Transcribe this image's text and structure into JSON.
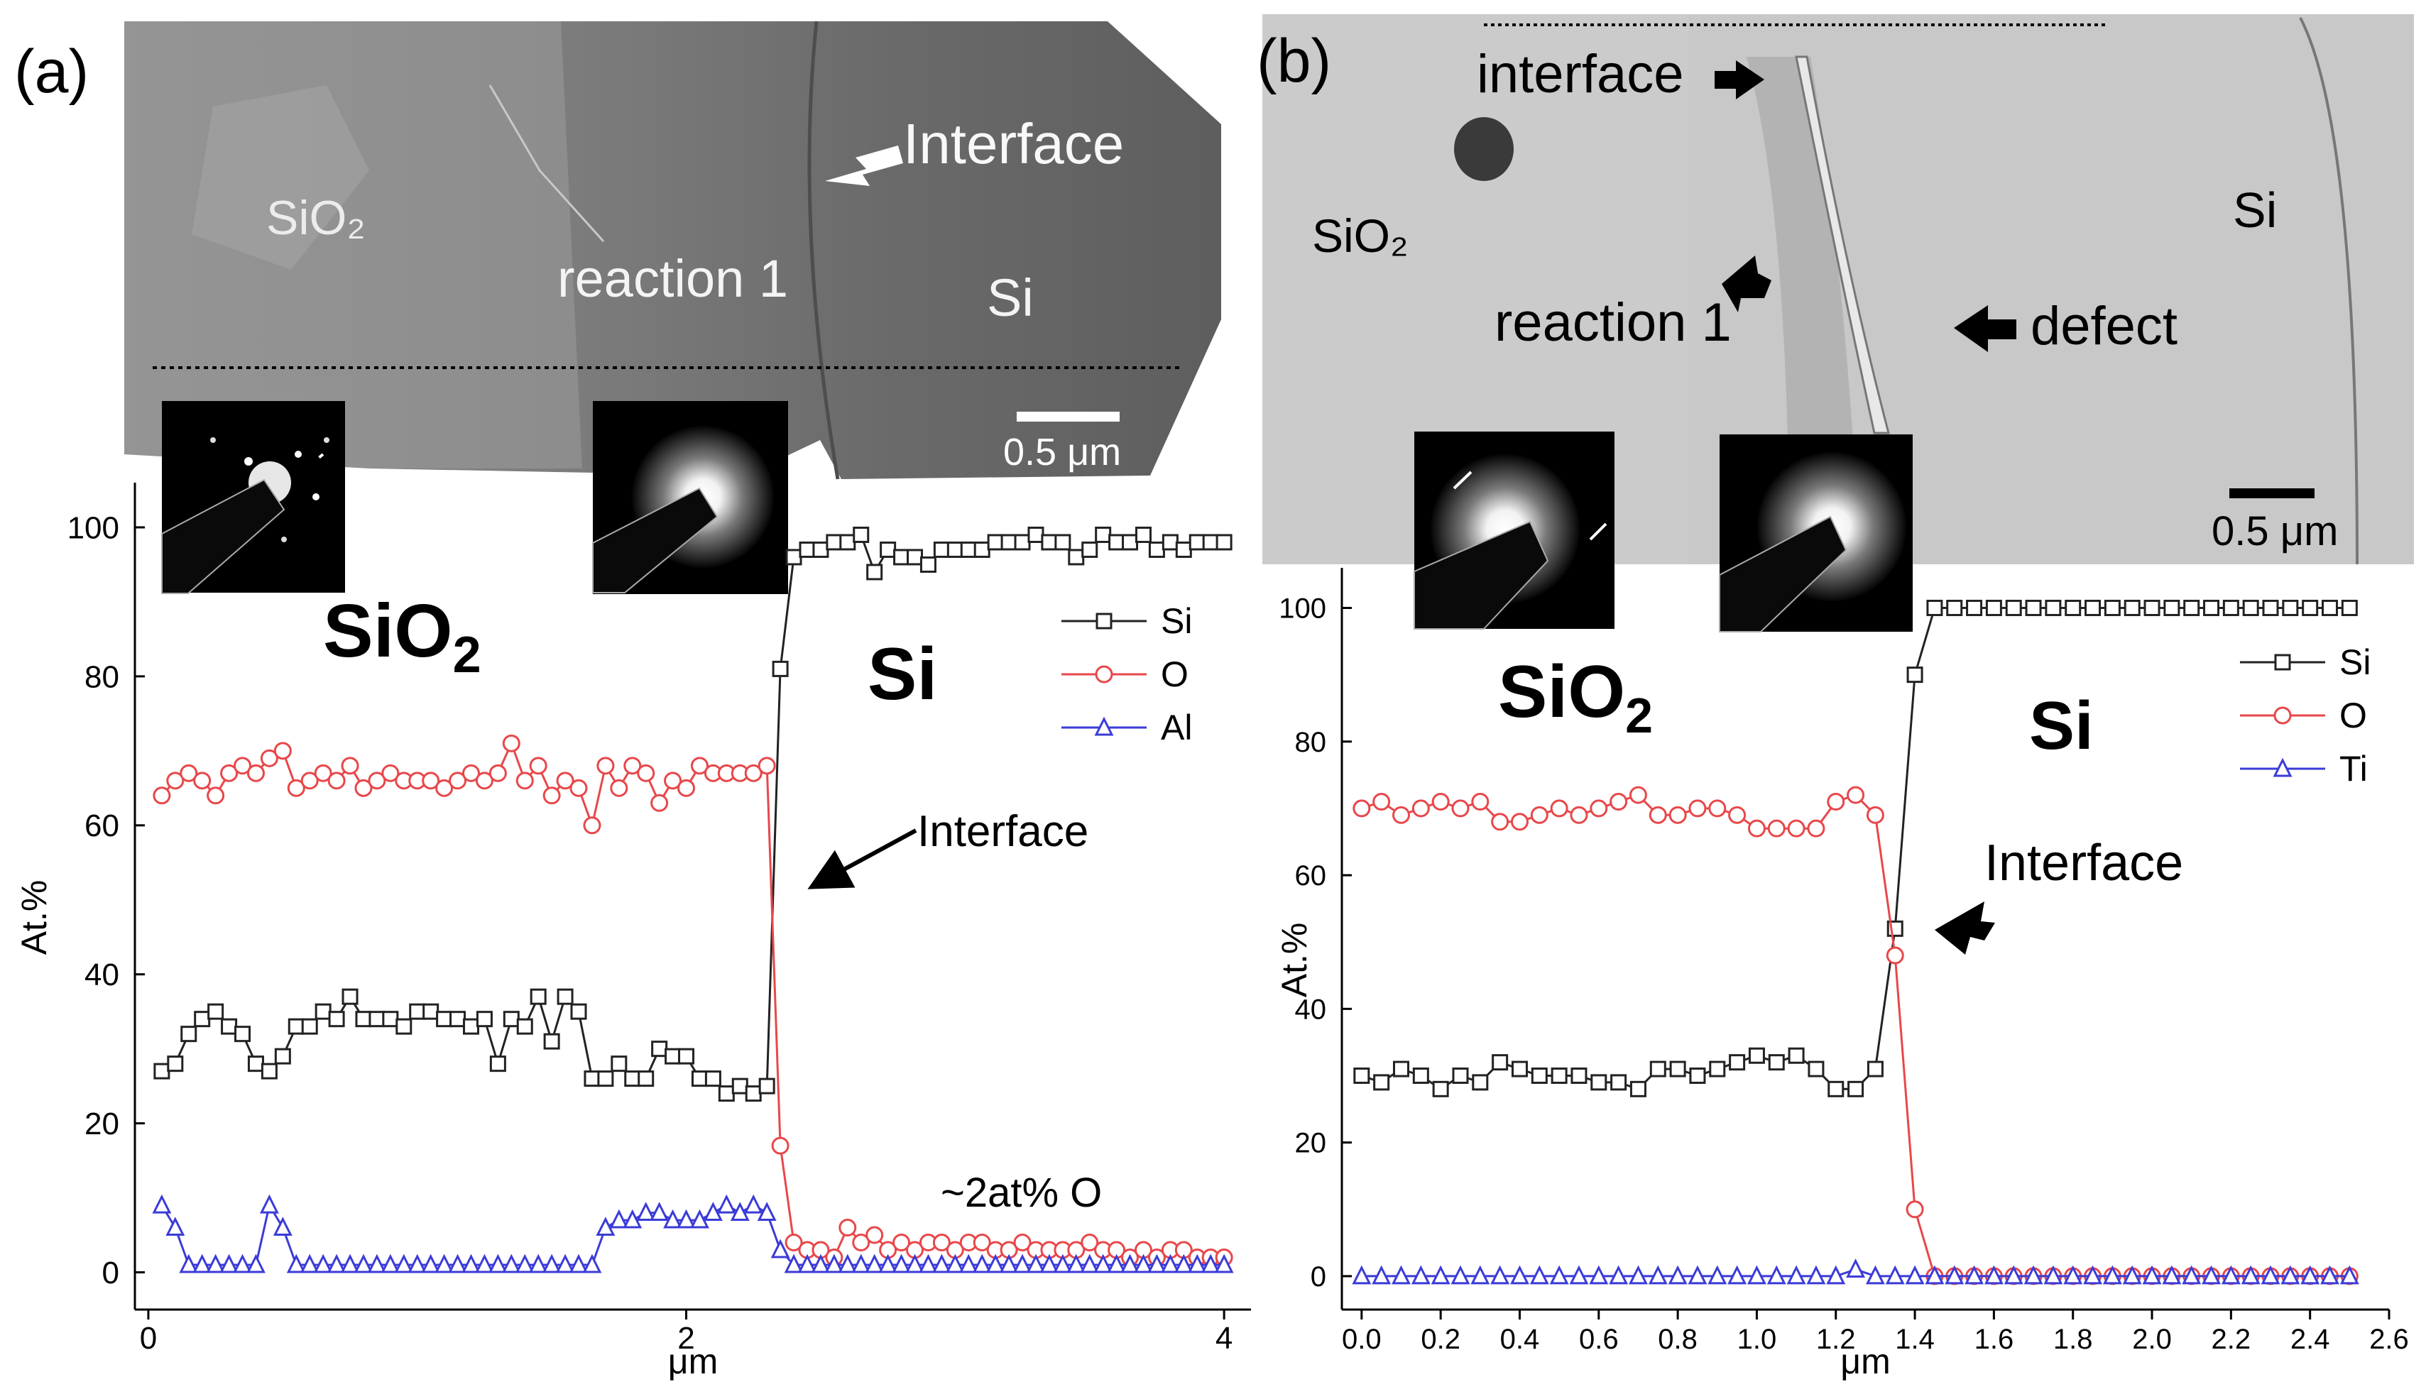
{
  "panels": {
    "a": {
      "label": "(a)",
      "micrograph": {
        "region_sio2": "SiO₂",
        "region_reaction": "reaction 1",
        "region_si": "Si",
        "interface_label": "Interface",
        "scale_bar": "0.5 μm"
      },
      "annotations": {
        "sio2": "SiO",
        "sio2_sub": "2",
        "si": "Si",
        "interface": "Interface",
        "oxygen_note": "~2at% O"
      }
    },
    "b": {
      "label": "(b)",
      "micrograph": {
        "interface_label": "interface",
        "region_sio2": "SiO₂",
        "region_reaction": "reaction 1",
        "region_si": "Si",
        "defect_label": "defect",
        "scale_bar": "0.5 μm"
      },
      "annotations": {
        "sio2": "SiO",
        "sio2_sub": "2",
        "si": "Si",
        "interface": "Interface"
      }
    }
  },
  "colors": {
    "si": "#222222",
    "o": "#e8474a",
    "al": "#3b3bd8",
    "ti": "#3b3bd8"
  },
  "chart_data": [
    {
      "type": "line",
      "panel": "a",
      "xlabel": "μm",
      "ylabel": "At.%",
      "xlim": [
        -0.05,
        4.1
      ],
      "ylim": [
        -5,
        106
      ],
      "xticks": [
        0,
        2,
        4
      ],
      "yticks": [
        0,
        20,
        40,
        60,
        80,
        100
      ],
      "legend": {
        "position": "top-right",
        "entries": [
          "Si",
          "O",
          "Al"
        ]
      },
      "series": [
        {
          "name": "Si",
          "marker": "square",
          "color": "#222222",
          "x": [
            0.05,
            0.1,
            0.15,
            0.2,
            0.25,
            0.3,
            0.35,
            0.4,
            0.45,
            0.5,
            0.55,
            0.6,
            0.65,
            0.7,
            0.75,
            0.8,
            0.85,
            0.9,
            0.95,
            1.0,
            1.05,
            1.1,
            1.15,
            1.2,
            1.25,
            1.3,
            1.35,
            1.4,
            1.45,
            1.5,
            1.55,
            1.6,
            1.65,
            1.7,
            1.75,
            1.8,
            1.85,
            1.9,
            1.95,
            2.0,
            2.05,
            2.1,
            2.15,
            2.2,
            2.25,
            2.3,
            2.35,
            2.4,
            2.45,
            2.5,
            2.55,
            2.6,
            2.65,
            2.7,
            2.75,
            2.8,
            2.85,
            2.9,
            2.95,
            3.0,
            3.05,
            3.1,
            3.15,
            3.2,
            3.25,
            3.3,
            3.35,
            3.4,
            3.45,
            3.5,
            3.55,
            3.6,
            3.65,
            3.7,
            3.75,
            3.8,
            3.85,
            3.9,
            3.95,
            4.0
          ],
          "values": [
            27,
            28,
            32,
            34,
            35,
            33,
            32,
            28,
            27,
            29,
            33,
            33,
            35,
            34,
            37,
            34,
            34,
            34,
            33,
            35,
            35,
            34,
            34,
            33,
            34,
            28,
            34,
            33,
            37,
            31,
            37,
            35,
            26,
            26,
            28,
            26,
            26,
            30,
            29,
            29,
            26,
            26,
            24,
            25,
            24,
            25,
            81,
            96,
            97,
            97,
            98,
            98,
            99,
            94,
            97,
            96,
            96,
            95,
            97,
            97,
            97,
            97,
            98,
            98,
            98,
            99,
            98,
            98,
            96,
            97,
            99,
            98,
            98,
            99,
            97,
            98,
            97,
            98,
            98,
            98
          ]
        },
        {
          "name": "O",
          "marker": "circle",
          "color": "#e8474a",
          "x": [
            0.05,
            0.1,
            0.15,
            0.2,
            0.25,
            0.3,
            0.35,
            0.4,
            0.45,
            0.5,
            0.55,
            0.6,
            0.65,
            0.7,
            0.75,
            0.8,
            0.85,
            0.9,
            0.95,
            1.0,
            1.05,
            1.1,
            1.15,
            1.2,
            1.25,
            1.3,
            1.35,
            1.4,
            1.45,
            1.5,
            1.55,
            1.6,
            1.65,
            1.7,
            1.75,
            1.8,
            1.85,
            1.9,
            1.95,
            2.0,
            2.05,
            2.1,
            2.15,
            2.2,
            2.25,
            2.3,
            2.35,
            2.4,
            2.45,
            2.5,
            2.55,
            2.6,
            2.65,
            2.7,
            2.75,
            2.8,
            2.85,
            2.9,
            2.95,
            3.0,
            3.05,
            3.1,
            3.15,
            3.2,
            3.25,
            3.3,
            3.35,
            3.4,
            3.45,
            3.5,
            3.55,
            3.6,
            3.65,
            3.7,
            3.75,
            3.8,
            3.85,
            3.9,
            3.95,
            4.0
          ],
          "values": [
            64,
            66,
            67,
            66,
            64,
            67,
            68,
            67,
            69,
            70,
            65,
            66,
            67,
            66,
            68,
            65,
            66,
            67,
            66,
            66,
            66,
            65,
            66,
            67,
            66,
            67,
            71,
            66,
            68,
            64,
            66,
            65,
            60,
            68,
            65,
            68,
            67,
            63,
            66,
            65,
            68,
            67,
            67,
            67,
            67,
            68,
            17,
            4,
            3,
            3,
            2,
            6,
            4,
            5,
            3,
            4,
            3,
            4,
            4,
            3,
            4,
            4,
            3,
            3,
            4,
            3,
            3,
            3,
            3,
            4,
            3,
            3,
            2,
            3,
            2,
            3,
            3,
            2,
            2,
            2
          ]
        },
        {
          "name": "Al",
          "marker": "triangle",
          "color": "#3b3bd8",
          "x": [
            0.05,
            0.1,
            0.15,
            0.2,
            0.25,
            0.3,
            0.35,
            0.4,
            0.45,
            0.5,
            0.55,
            0.6,
            0.65,
            0.7,
            0.75,
            0.8,
            0.85,
            0.9,
            0.95,
            1.0,
            1.05,
            1.1,
            1.15,
            1.2,
            1.25,
            1.3,
            1.35,
            1.4,
            1.45,
            1.5,
            1.55,
            1.6,
            1.65,
            1.7,
            1.75,
            1.8,
            1.85,
            1.9,
            1.95,
            2.0,
            2.05,
            2.1,
            2.15,
            2.2,
            2.25,
            2.3,
            2.35,
            2.4,
            2.45,
            2.5,
            2.55,
            2.6,
            2.65,
            2.7,
            2.75,
            2.8,
            2.85,
            2.9,
            2.95,
            3.0,
            3.05,
            3.1,
            3.15,
            3.2,
            3.25,
            3.3,
            3.35,
            3.4,
            3.45,
            3.5,
            3.55,
            3.6,
            3.65,
            3.7,
            3.75,
            3.8,
            3.85,
            3.9,
            3.95,
            4.0
          ],
          "values": [
            9,
            6,
            1,
            1,
            1,
            1,
            1,
            1,
            9,
            6,
            1,
            1,
            1,
            1,
            1,
            1,
            1,
            1,
            1,
            1,
            1,
            1,
            1,
            1,
            1,
            1,
            1,
            1,
            1,
            1,
            1,
            1,
            1,
            6,
            7,
            7,
            8,
            8,
            7,
            7,
            7,
            8,
            9,
            8,
            9,
            8,
            3,
            1,
            1,
            1,
            1,
            1,
            1,
            1,
            1,
            1,
            1,
            1,
            1,
            1,
            1,
            1,
            1,
            1,
            1,
            1,
            1,
            1,
            1,
            1,
            1,
            1,
            1,
            1,
            1,
            1,
            1,
            1,
            1,
            1
          ]
        }
      ]
    },
    {
      "type": "line",
      "panel": "b",
      "xlabel": "μm",
      "ylabel": "At.%",
      "xlim": [
        -0.05,
        2.6
      ],
      "ylim": [
        -5,
        106
      ],
      "xticks": [
        0.0,
        0.2,
        0.4,
        0.6,
        0.8,
        1.0,
        1.2,
        1.4,
        1.6,
        1.8,
        2.0,
        2.2,
        2.4,
        2.6
      ],
      "xtick_labels": [
        "0.0",
        "0.2",
        "0.4",
        "0.6",
        "0.8",
        "1.0",
        "1.2",
        "1.4",
        "1.6",
        "1.8",
        "2.0",
        "2.2",
        "2.4",
        "2.6"
      ],
      "yticks": [
        0,
        20,
        40,
        60,
        80,
        100
      ],
      "legend": {
        "position": "top-right",
        "entries": [
          "Si",
          "O",
          "Ti"
        ]
      },
      "series": [
        {
          "name": "Si",
          "marker": "square",
          "color": "#222222",
          "x": [
            0.0,
            0.05,
            0.1,
            0.15,
            0.2,
            0.25,
            0.3,
            0.35,
            0.4,
            0.45,
            0.5,
            0.55,
            0.6,
            0.65,
            0.7,
            0.75,
            0.8,
            0.85,
            0.9,
            0.95,
            1.0,
            1.05,
            1.1,
            1.15,
            1.2,
            1.25,
            1.3,
            1.35,
            1.4,
            1.45,
            1.5,
            1.55,
            1.6,
            1.65,
            1.7,
            1.75,
            1.8,
            1.85,
            1.9,
            1.95,
            2.0,
            2.05,
            2.1,
            2.15,
            2.2,
            2.25,
            2.3,
            2.35,
            2.4,
            2.45,
            2.5
          ],
          "values": [
            30,
            29,
            31,
            30,
            28,
            30,
            29,
            32,
            31,
            30,
            30,
            30,
            29,
            29,
            28,
            31,
            31,
            30,
            31,
            32,
            33,
            32,
            33,
            31,
            28,
            28,
            31,
            52,
            90,
            100,
            100,
            100,
            100,
            100,
            100,
            100,
            100,
            100,
            100,
            100,
            100,
            100,
            100,
            100,
            100,
            100,
            100,
            100,
            100,
            100,
            100
          ]
        },
        {
          "name": "O",
          "marker": "circle",
          "color": "#e8474a",
          "x": [
            0.0,
            0.05,
            0.1,
            0.15,
            0.2,
            0.25,
            0.3,
            0.35,
            0.4,
            0.45,
            0.5,
            0.55,
            0.6,
            0.65,
            0.7,
            0.75,
            0.8,
            0.85,
            0.9,
            0.95,
            1.0,
            1.05,
            1.1,
            1.15,
            1.2,
            1.25,
            1.3,
            1.35,
            1.4,
            1.45,
            1.5,
            1.55,
            1.6,
            1.65,
            1.7,
            1.75,
            1.8,
            1.85,
            1.9,
            1.95,
            2.0,
            2.05,
            2.1,
            2.15,
            2.2,
            2.25,
            2.3,
            2.35,
            2.4,
            2.45,
            2.5
          ],
          "values": [
            70,
            71,
            69,
            70,
            71,
            70,
            71,
            68,
            68,
            69,
            70,
            69,
            70,
            71,
            72,
            69,
            69,
            70,
            70,
            69,
            67,
            67,
            67,
            67,
            71,
            72,
            69,
            48,
            10,
            0,
            0,
            0,
            0,
            0,
            0,
            0,
            0,
            0,
            0,
            0,
            0,
            0,
            0,
            0,
            0,
            0,
            0,
            0,
            0,
            0,
            0
          ]
        },
        {
          "name": "Ti",
          "marker": "triangle",
          "color": "#3b3bd8",
          "x": [
            0.0,
            0.05,
            0.1,
            0.15,
            0.2,
            0.25,
            0.3,
            0.35,
            0.4,
            0.45,
            0.5,
            0.55,
            0.6,
            0.65,
            0.7,
            0.75,
            0.8,
            0.85,
            0.9,
            0.95,
            1.0,
            1.05,
            1.1,
            1.15,
            1.2,
            1.25,
            1.3,
            1.35,
            1.4,
            1.45,
            1.5,
            1.55,
            1.6,
            1.65,
            1.7,
            1.75,
            1.8,
            1.85,
            1.9,
            1.95,
            2.0,
            2.05,
            2.1,
            2.15,
            2.2,
            2.25,
            2.3,
            2.35,
            2.4,
            2.45,
            2.5
          ],
          "values": [
            0,
            0,
            0,
            0,
            0,
            0,
            0,
            0,
            0,
            0,
            0,
            0,
            0,
            0,
            0,
            0,
            0,
            0,
            0,
            0,
            0,
            0,
            0,
            0,
            0,
            1,
            0,
            0,
            0,
            0,
            0,
            0,
            0,
            0,
            0,
            0,
            0,
            0,
            0,
            0,
            0,
            0,
            0,
            0,
            0,
            0,
            0,
            0,
            0,
            0,
            0
          ]
        }
      ]
    }
  ]
}
